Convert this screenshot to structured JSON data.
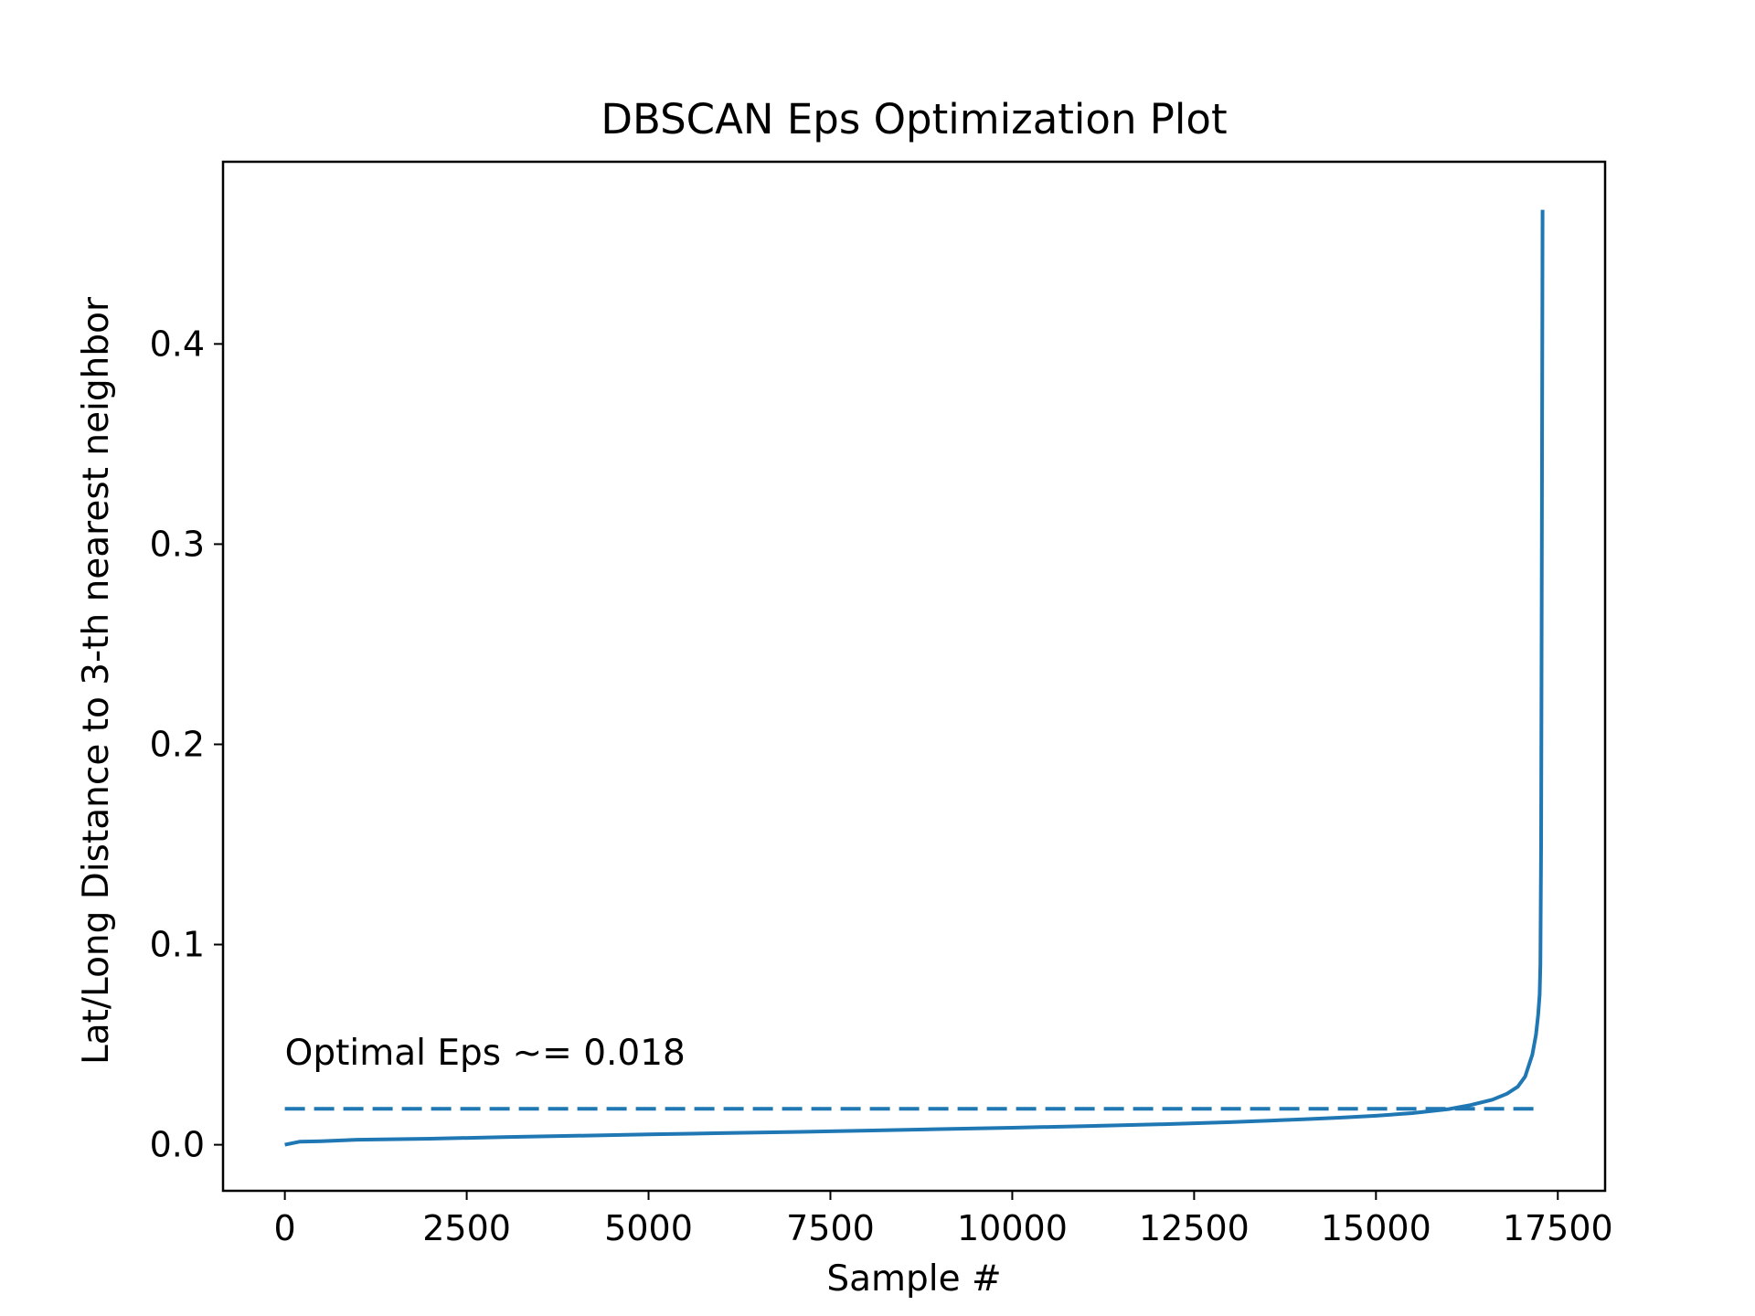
{
  "colors": {
    "series": "#1f77b4",
    "axes": "#000000",
    "background": "#ffffff"
  },
  "chart_data": {
    "type": "line",
    "title": "DBSCAN Eps Optimization Plot",
    "xlabel": "Sample #",
    "ylabel": "Lat/Long Distance to 3-th nearest neighbor",
    "xlim": [
      -850,
      18150
    ],
    "ylim": [
      -0.023,
      0.491
    ],
    "xticks": [
      {
        "value": 0,
        "label": "0"
      },
      {
        "value": 2500,
        "label": "2500"
      },
      {
        "value": 5000,
        "label": "5000"
      },
      {
        "value": 7500,
        "label": "7500"
      },
      {
        "value": 10000,
        "label": "10000"
      },
      {
        "value": 12500,
        "label": "12500"
      },
      {
        "value": 15000,
        "label": "15000"
      },
      {
        "value": 17500,
        "label": "17500"
      }
    ],
    "yticks": [
      {
        "value": 0.0,
        "label": "0.0"
      },
      {
        "value": 0.1,
        "label": "0.1"
      },
      {
        "value": 0.2,
        "label": "0.2"
      },
      {
        "value": 0.3,
        "label": "0.3"
      },
      {
        "value": 0.4,
        "label": "0.4"
      }
    ],
    "grid": false,
    "series": [
      {
        "style": "solid",
        "x": [
          0,
          200,
          500,
          1000,
          2000,
          3000,
          4000,
          5000,
          6000,
          7000,
          8000,
          9000,
          10000,
          11000,
          12000,
          13000,
          14000,
          14500,
          15000,
          15500,
          16000,
          16300,
          16600,
          16800,
          16950,
          17050,
          17150,
          17200,
          17230,
          17250,
          17260,
          17270,
          17280,
          17290
        ],
        "y": [
          0.0,
          0.0015,
          0.0018,
          0.0025,
          0.003,
          0.0038,
          0.0045,
          0.0052,
          0.0058,
          0.0064,
          0.0071,
          0.0078,
          0.0085,
          0.0093,
          0.0102,
          0.0113,
          0.0127,
          0.0135,
          0.0145,
          0.0158,
          0.0178,
          0.0198,
          0.0225,
          0.0255,
          0.029,
          0.034,
          0.045,
          0.055,
          0.065,
          0.075,
          0.09,
          0.15,
          0.3,
          0.467
        ]
      },
      {
        "style": "dashed",
        "x": [
          0,
          17230
        ],
        "y": [
          0.018,
          0.018
        ]
      }
    ],
    "annotations": [
      {
        "text": "Optimal Eps ~= 0.018",
        "x": 0,
        "y": 0.04
      }
    ]
  }
}
